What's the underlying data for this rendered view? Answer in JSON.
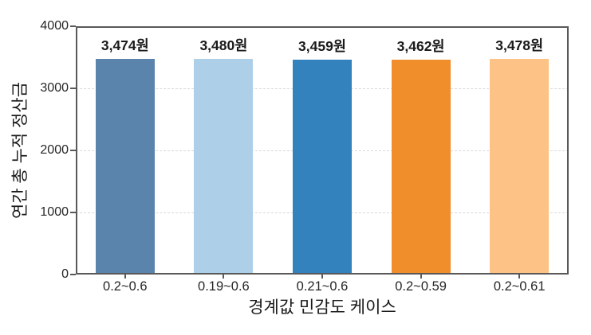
{
  "chart_data": {
    "type": "bar",
    "title": "",
    "categories": [
      "0.2~0.6",
      "0.19~0.6",
      "0.21~0.6",
      "0.2~0.59",
      "0.2~0.61"
    ],
    "values": [
      3474,
      3480,
      3459,
      3462,
      3478
    ],
    "value_labels": [
      "3,474원",
      "3,480원",
      "3,459원",
      "3,462원",
      "3,478원"
    ],
    "bar_colors": [
      "#5B84AD",
      "#AECFE8",
      "#3482BD",
      "#F18E2C",
      "#FDC386"
    ],
    "xlabel": "경계값 민감도 케이스",
    "ylabel": "연간 총 누적 정산금",
    "ylim": [
      0,
      4000
    ],
    "yticks": [
      0,
      1000,
      2000,
      3000,
      4000
    ],
    "grid": "horizontal-dashed",
    "legend": "none"
  },
  "style": {
    "axis_color": "#595959",
    "grid_color": "#D9D9D9",
    "tick_label_color": "#262626",
    "value_label_color": "#1A1A1A",
    "background": "#FFFFFF"
  }
}
